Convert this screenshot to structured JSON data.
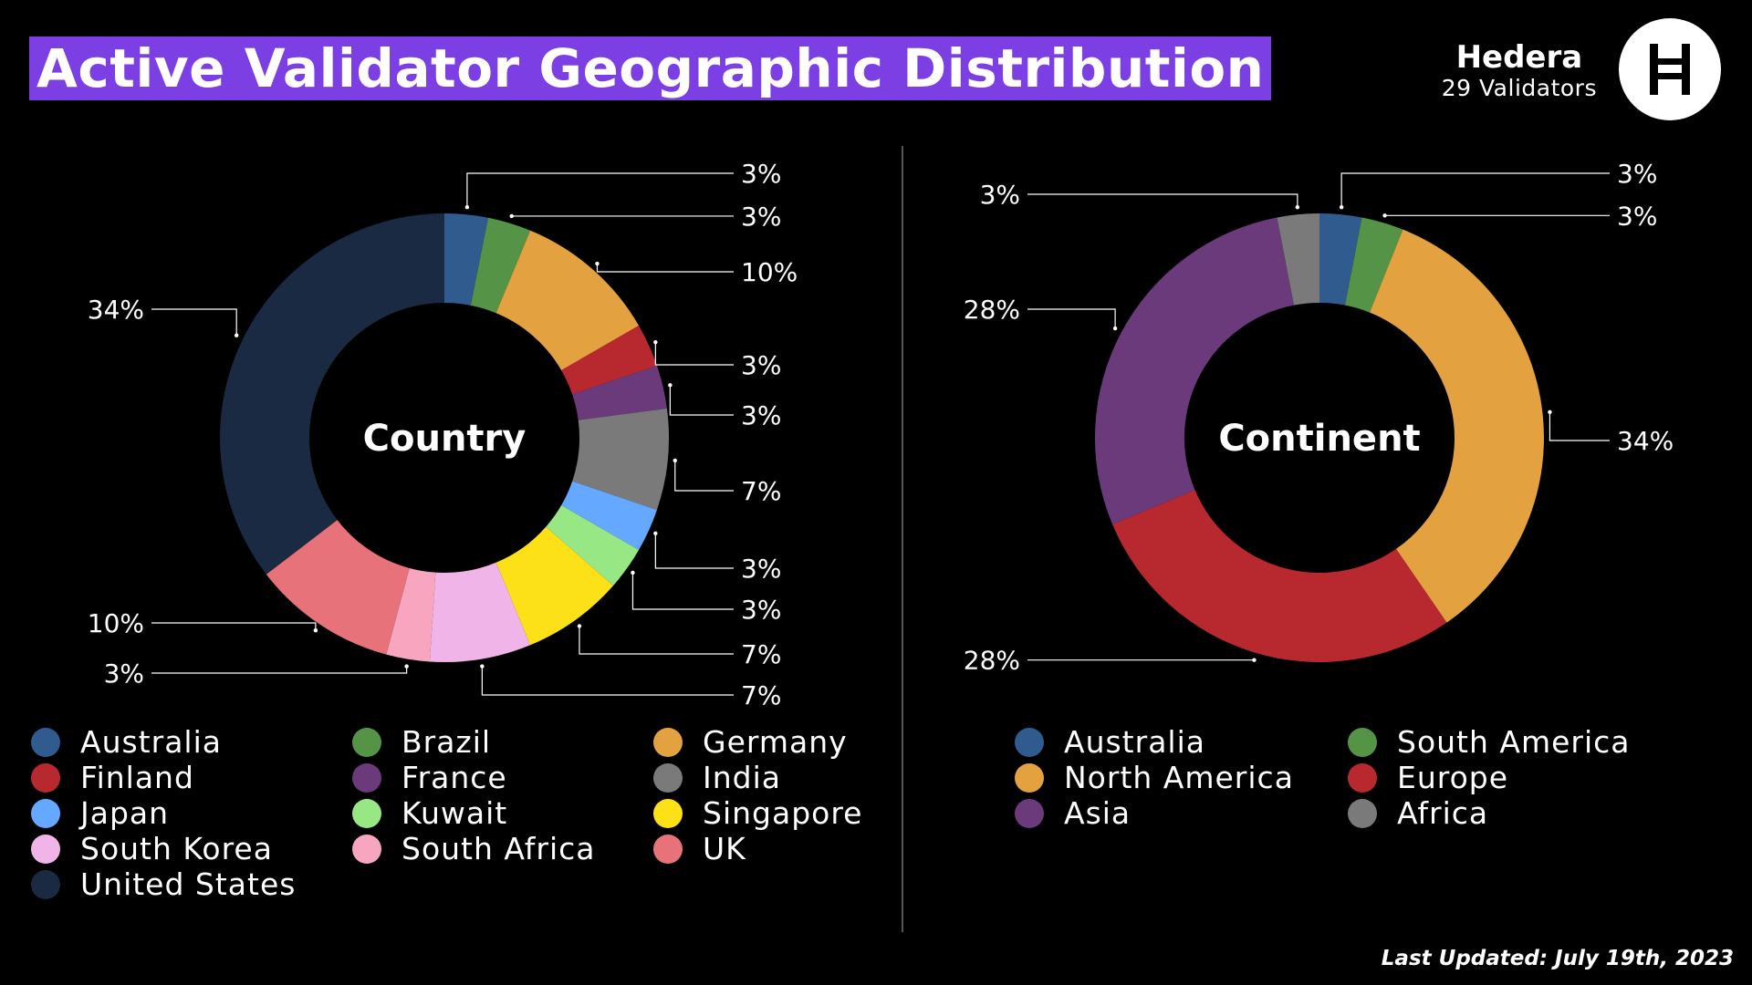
{
  "header": {
    "title": "Active Validator Geographic Distribution",
    "brand_name": "Hedera",
    "brand_sub": "29 Validators",
    "title_bg": "#7b3fe4"
  },
  "footer": {
    "last_updated": "Last Updated: July 19th, 2023"
  },
  "chart_data": [
    {
      "type": "pie",
      "variant": "donut",
      "center_label": "Country",
      "categories": [
        "Australia",
        "Brazil",
        "Germany",
        "Finland",
        "France",
        "India",
        "Japan",
        "Kuwait",
        "Singapore",
        "South Korea",
        "South Africa",
        "UK",
        "United States"
      ],
      "values": [
        3,
        3,
        10,
        3,
        3,
        7,
        3,
        3,
        7,
        7,
        3,
        10,
        34
      ],
      "colors": [
        "#2f5b8f",
        "#559446",
        "#e3a140",
        "#b8292f",
        "#6b3a7b",
        "#7a7a7a",
        "#64a9ff",
        "#97e884",
        "#fde118",
        "#f0b4e8",
        "#f8a5c0",
        "#e8727a",
        "#1b2a43"
      ],
      "data_labels": [
        "3%",
        "3%",
        "10%",
        "3%",
        "3%",
        "7%",
        "3%",
        "3%",
        "7%",
        "7%",
        "3%",
        "10%",
        "34%"
      ],
      "legend": {
        "position": "bottom",
        "order": [
          "Australia",
          "Brazil",
          "Germany",
          "Finland",
          "France",
          "India",
          "Japan",
          "Kuwait",
          "Singapore",
          "South Korea",
          "South Africa",
          "UK",
          "United States"
        ]
      }
    },
    {
      "type": "pie",
      "variant": "donut",
      "center_label": "Continent",
      "categories": [
        "Australia",
        "South America",
        "North America",
        "Europe",
        "Asia",
        "Africa"
      ],
      "values": [
        3,
        3,
        34,
        28,
        28,
        3
      ],
      "colors": [
        "#2f5b8f",
        "#559446",
        "#e3a140",
        "#b8292f",
        "#6b3a7b",
        "#7a7a7a"
      ],
      "data_labels": [
        "3%",
        "3%",
        "34%",
        "28%",
        "28%",
        "3%"
      ],
      "legend": {
        "position": "bottom",
        "order": [
          "Australia",
          "South America",
          "North America",
          "Europe",
          "Asia",
          "Africa"
        ]
      }
    }
  ]
}
